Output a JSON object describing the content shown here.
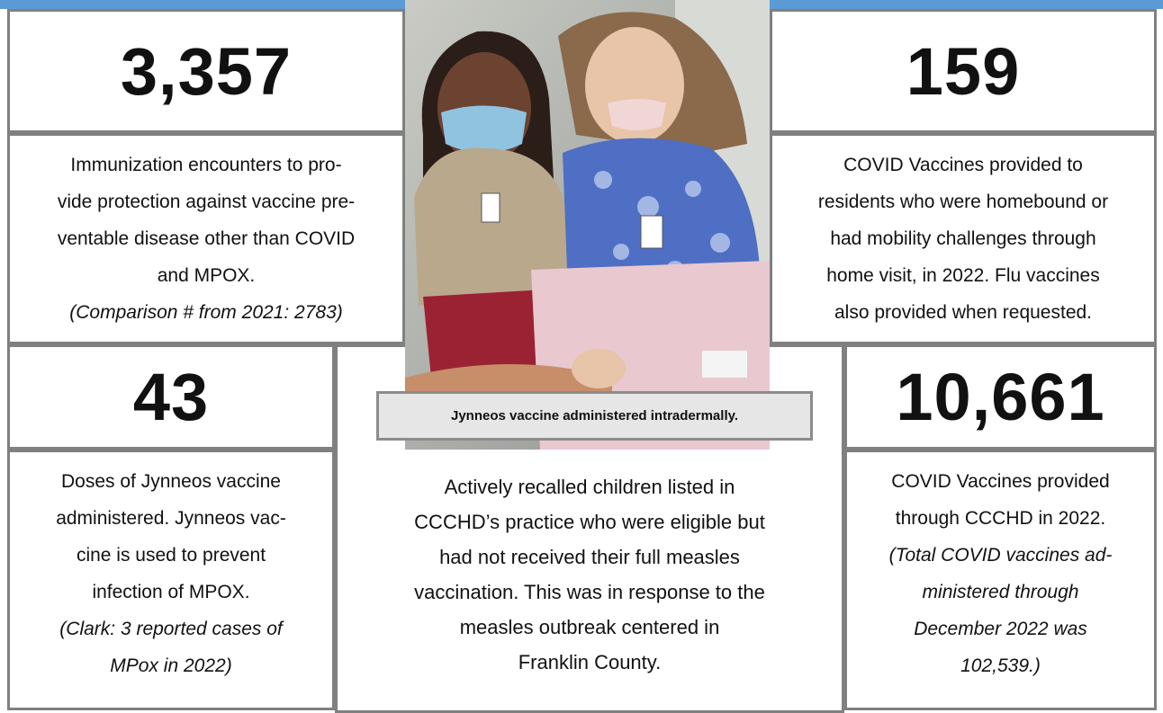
{
  "stats": [
    {
      "number": "3,357",
      "lines": [
        "Immunization encounters to pro-",
        "vide protection against vaccine pre-",
        "ventable disease other than COVID",
        "and MPOX."
      ],
      "note_lines": [
        "(Comparison # from 2021:  2783)"
      ]
    },
    {
      "number": "159",
      "lines": [
        "COVID Vaccines provided to",
        "residents who were homebound or",
        "had mobility challenges through",
        "home visit, in 2022.   Flu vaccines",
        "also provided when requested."
      ],
      "note_lines": []
    },
    {
      "number": "43",
      "lines": [
        "Doses of Jynneos vaccine",
        "administered.  Jynneos vac-",
        "cine is used to prevent",
        "infection of MPOX."
      ],
      "note_lines": [
        "(Clark: 3 reported cases of",
        "MPox in 2022)"
      ]
    },
    {
      "number": "10,661",
      "lines": [
        "COVID Vaccines provided",
        "through CCCHD in 2022."
      ],
      "note_lines": [
        "(Total COVID vaccines ad-",
        "ministered through",
        "December 2022 was",
        "102,539.)"
      ]
    }
  ],
  "middle": {
    "lines": [
      "Actively recalled children listed in",
      "CCCHD’s practice who were eligible but",
      "had not received their full measles",
      "vaccination. This was in response to the",
      "measles outbreak centered in",
      "Franklin County."
    ]
  },
  "caption": "Jynneos vaccine administered intradermally."
}
